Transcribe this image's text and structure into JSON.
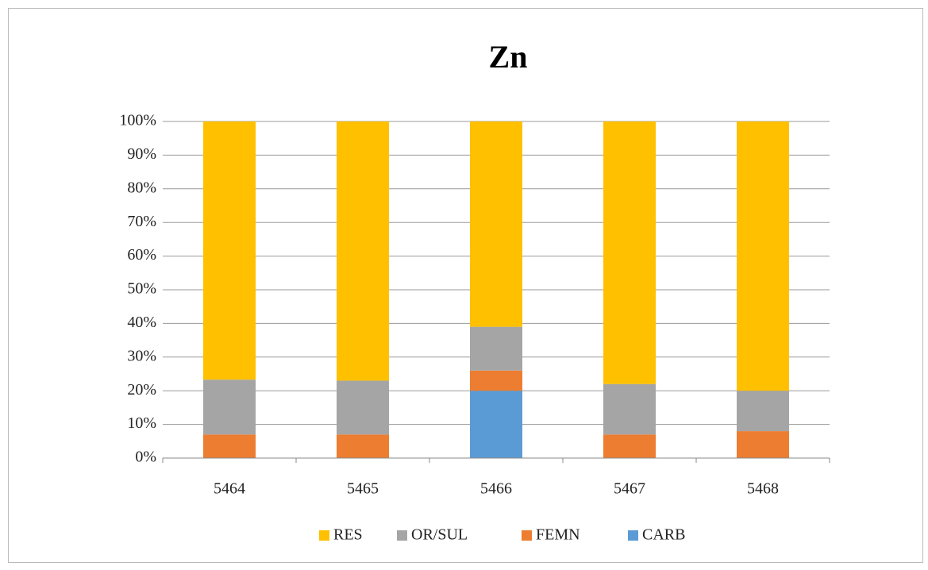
{
  "chart_data": {
    "type": "bar",
    "stacked": true,
    "title": "Zn",
    "categories": [
      "5464",
      "5465",
      "5466",
      "5467",
      "5468"
    ],
    "series": [
      {
        "name": "RES",
        "color": "#ffc000",
        "values": [
          76.7,
          77,
          61,
          78,
          80
        ]
      },
      {
        "name": "OR/SUL",
        "color": "#a5a5a5",
        "values": [
          16.3,
          16,
          13,
          15,
          12
        ]
      },
      {
        "name": "FEMN",
        "color": "#ed7d31",
        "values": [
          7,
          7,
          6,
          7,
          8
        ]
      },
      {
        "name": "CARB",
        "color": "#5b9bd5",
        "values": [
          0,
          0,
          20,
          0,
          0
        ]
      }
    ],
    "ylim": [
      0,
      100
    ],
    "yticks": [
      {
        "value": 0,
        "label": "0%"
      },
      {
        "value": 10,
        "label": "10%"
      },
      {
        "value": 20,
        "label": "20%"
      },
      {
        "value": 30,
        "label": "30%"
      },
      {
        "value": 40,
        "label": "40%"
      },
      {
        "value": 50,
        "label": "50%"
      },
      {
        "value": 60,
        "label": "60%"
      },
      {
        "value": 70,
        "label": "70%"
      },
      {
        "value": 80,
        "label": "80%"
      },
      {
        "value": 90,
        "label": "90%"
      },
      {
        "value": 100,
        "label": "100%"
      }
    ],
    "grid": true,
    "legend": "bottom"
  }
}
